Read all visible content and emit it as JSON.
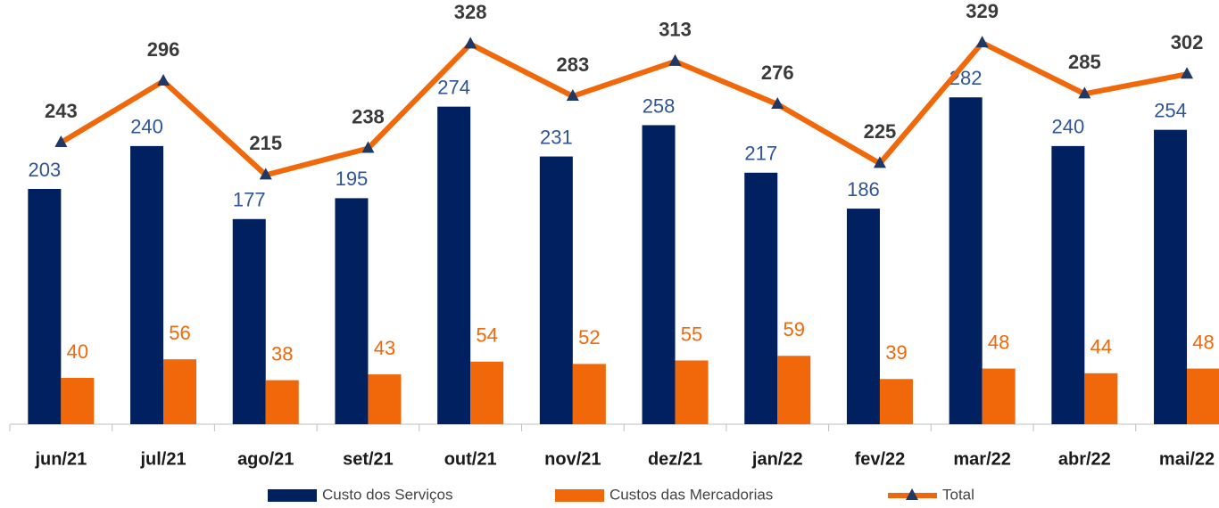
{
  "chart_data": {
    "type": "bar",
    "categories": [
      "jun/21",
      "jul/21",
      "ago/21",
      "set/21",
      "out/21",
      "nov/21",
      "dez/21",
      "jan/22",
      "fev/22",
      "mar/22",
      "abr/22",
      "mai/22"
    ],
    "ylim": [
      0,
      366
    ],
    "series": [
      {
        "name": "Custo dos Serviços",
        "type": "bar",
        "color": "#002060",
        "label_color": "#2f5597",
        "values": [
          203,
          240,
          177,
          195,
          274,
          231,
          258,
          217,
          186,
          282,
          240,
          254
        ]
      },
      {
        "name": "Custos das Mercadorias",
        "type": "bar",
        "color": "#f0680a",
        "label_color": "#f0680a",
        "values": [
          40,
          56,
          38,
          43,
          54,
          52,
          55,
          59,
          39,
          48,
          44,
          48
        ]
      },
      {
        "name": "Total",
        "type": "line",
        "color": "#f0680a",
        "marker_color": "#1f3864",
        "label_color": "#3a3a3a",
        "values": [
          243,
          296,
          215,
          238,
          328,
          283,
          313,
          276,
          225,
          329,
          285,
          302
        ]
      }
    ]
  }
}
